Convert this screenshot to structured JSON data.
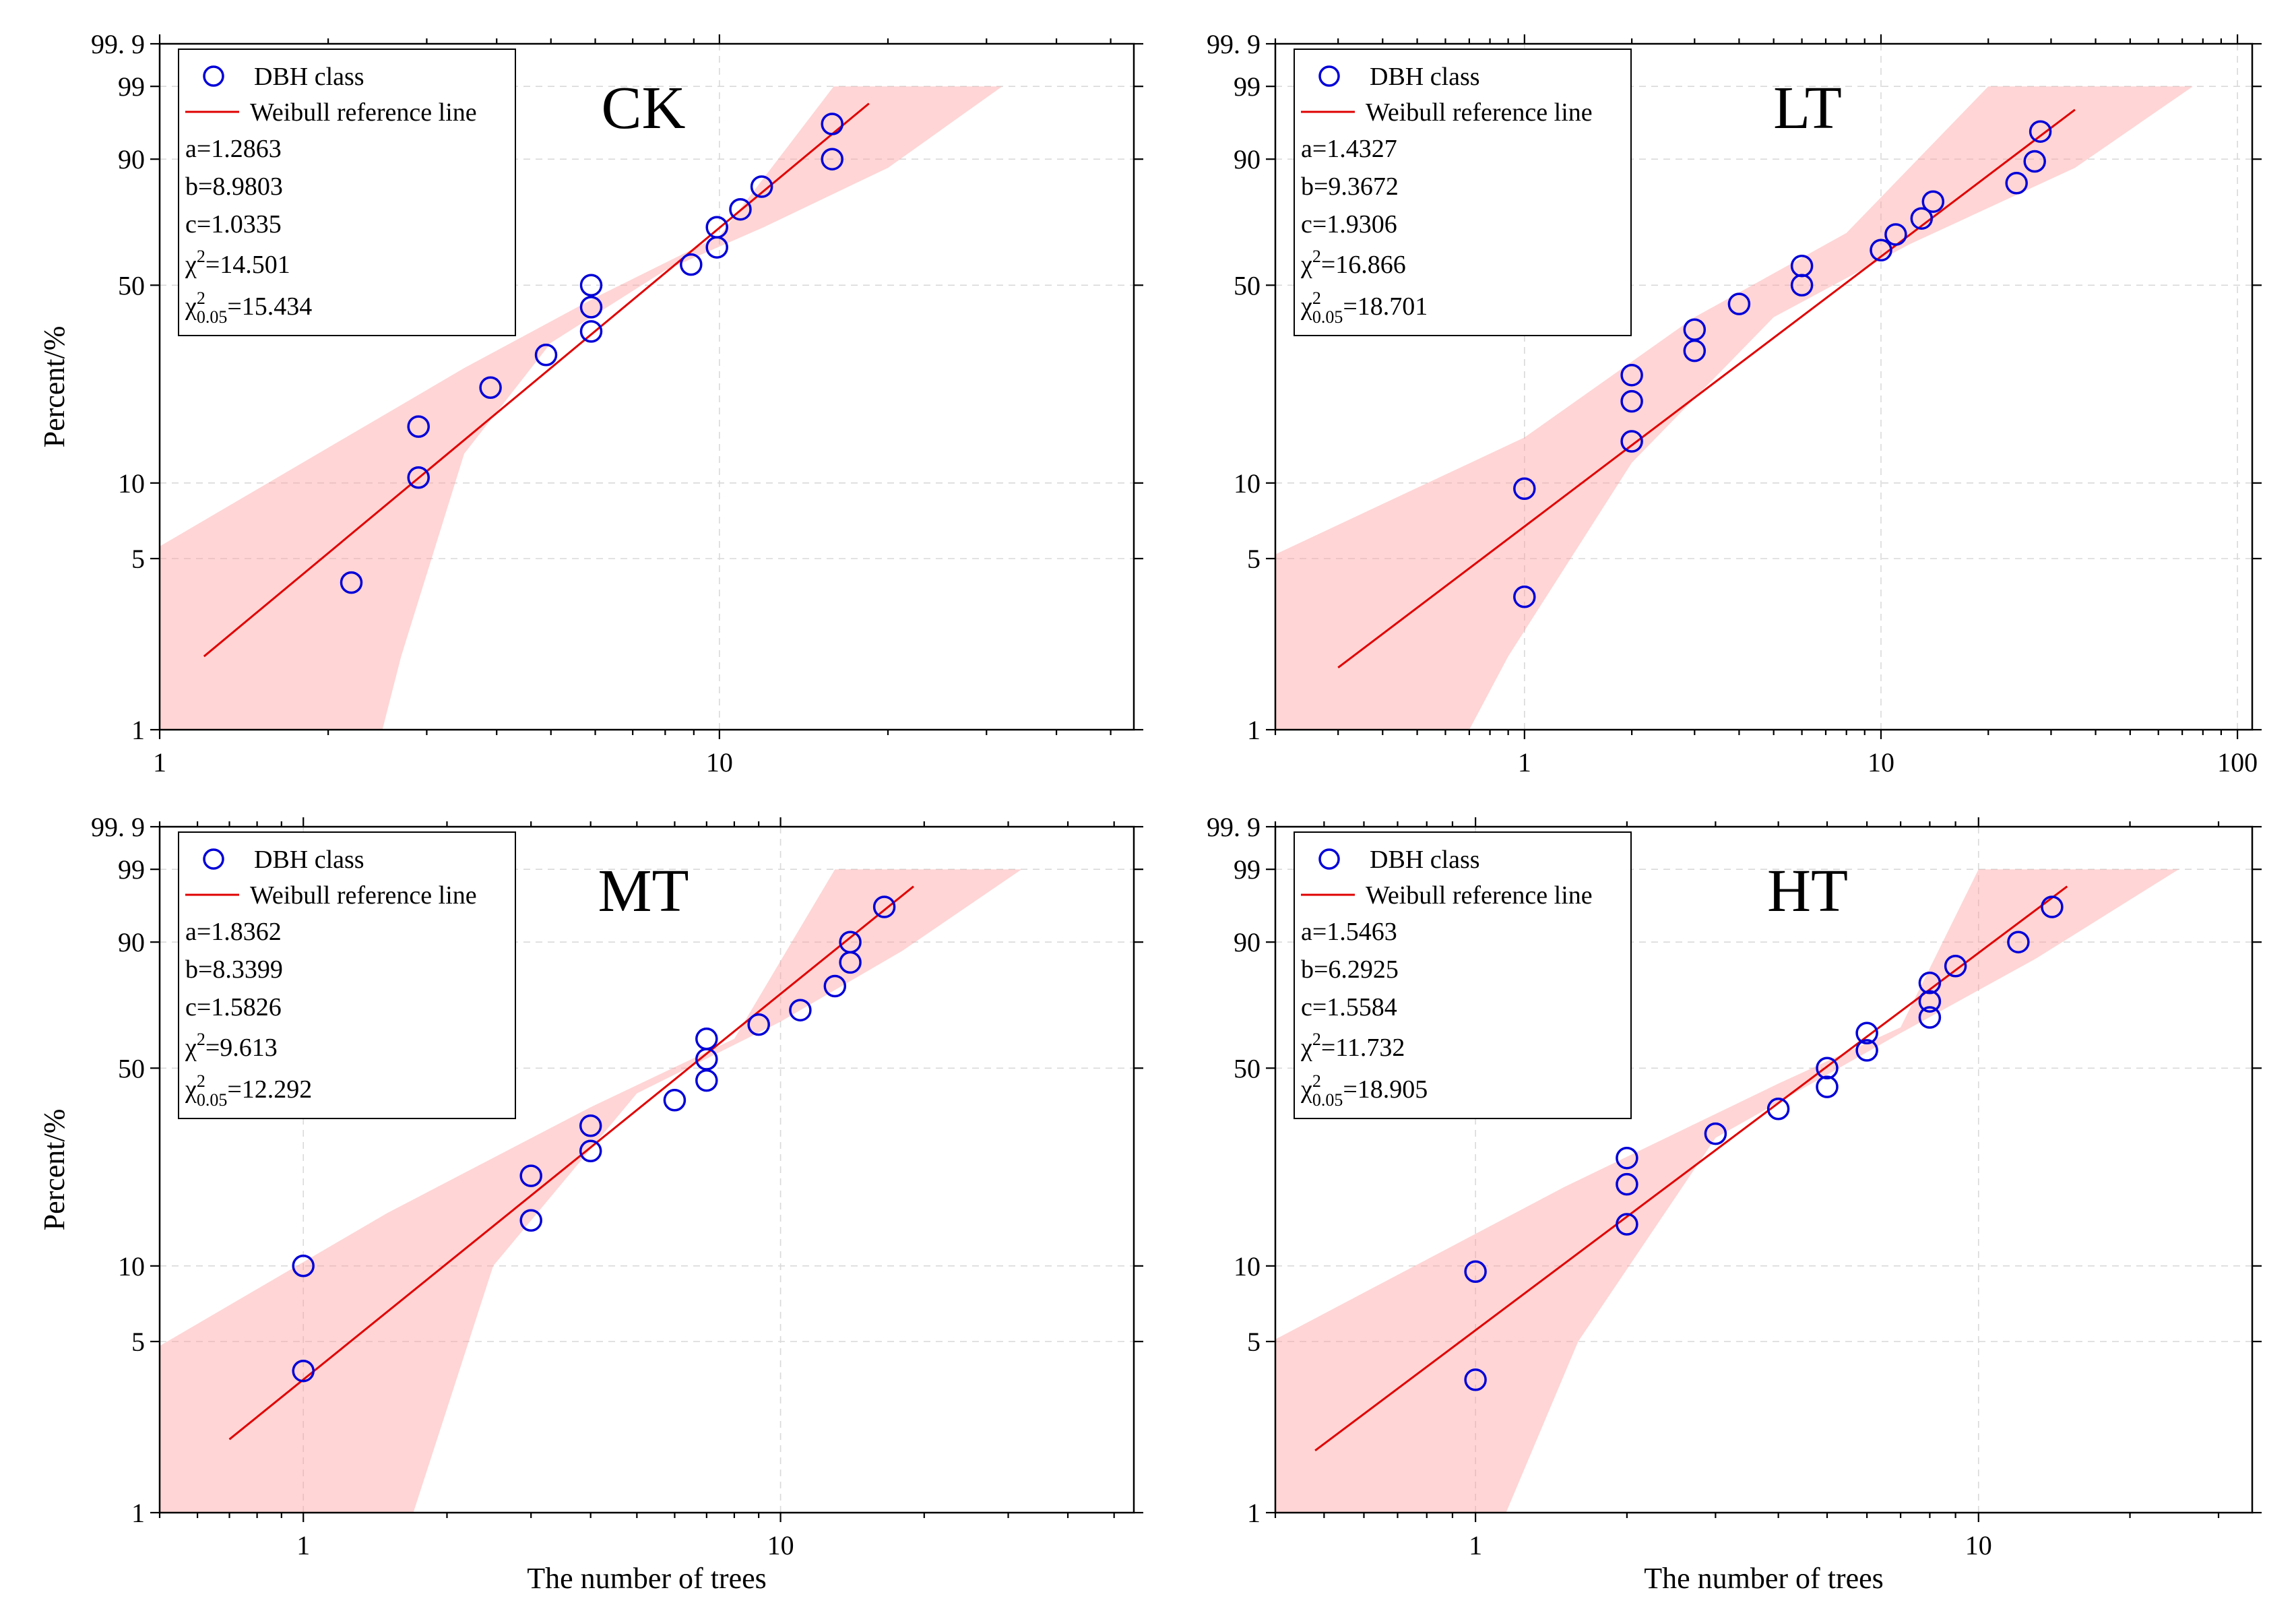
{
  "chart_data": [
    {
      "type": "scatter",
      "title": "CK",
      "xlabel": "",
      "ylabel": "Percent/%",
      "x_scale": "log",
      "y_scale": "weibull-probability",
      "xlim": [
        1,
        55
      ],
      "xticks": [
        {
          "value": 1,
          "label": "1"
        },
        {
          "value": 10,
          "label": "10"
        }
      ],
      "ylim": [
        1,
        99.9
      ],
      "yticks": [
        {
          "value": 1,
          "label": "1"
        },
        {
          "value": 5,
          "label": "5"
        },
        {
          "value": 10,
          "label": "10"
        },
        {
          "value": 50,
          "label": "50"
        },
        {
          "value": 90,
          "label": "90"
        },
        {
          "value": 99,
          "label": "99"
        },
        {
          "value": 99.9,
          "label": "99. 9"
        }
      ],
      "grid": true,
      "legend": {
        "position": "top-left",
        "entries": [
          "DBH class",
          "Weibull reference line"
        ]
      },
      "params": [
        "a=1.2863",
        "b=8.9803",
        "c=1.0335",
        "χ2=14.501",
        "χ20.05=15.434"
      ],
      "series": [
        {
          "name": "DBH class",
          "kind": "points",
          "points": [
            [
              2.2,
              4
            ],
            [
              2.9,
              10.5
            ],
            [
              2.9,
              16.5
            ],
            [
              3.9,
              23
            ],
            [
              4.9,
              30
            ],
            [
              5.9,
              36
            ],
            [
              5.9,
              43
            ],
            [
              5.9,
              50
            ],
            [
              8.9,
              57
            ],
            [
              9.9,
              63
            ],
            [
              9.9,
              70
            ],
            [
              10.9,
              76
            ],
            [
              11.9,
              83
            ],
            [
              15.9,
              90
            ],
            [
              15.9,
              96
            ]
          ]
        },
        {
          "name": "Weibull reference line",
          "kind": "line",
          "points": [
            [
              1.2,
              2
            ],
            [
              18.5,
              98
            ]
          ]
        }
      ],
      "confidence_band": [
        [
          1,
          5.6
        ],
        [
          3.5,
          27
        ],
        [
          6,
          46
        ],
        [
          10,
          67
        ],
        [
          16,
          99
        ],
        [
          32,
          99
        ],
        [
          20,
          88
        ],
        [
          12,
          70
        ],
        [
          8,
          55
        ],
        [
          5,
          33
        ],
        [
          3.5,
          13
        ],
        [
          2.7,
          2
        ],
        [
          2.5,
          1
        ],
        [
          1,
          1
        ]
      ]
    },
    {
      "type": "scatter",
      "title": "LT",
      "xlabel": "",
      "ylabel": "",
      "x_scale": "log",
      "y_scale": "weibull-probability",
      "xlim": [
        0.2,
        110
      ],
      "xticks": [
        {
          "value": 1,
          "label": "1"
        },
        {
          "value": 10,
          "label": "10"
        },
        {
          "value": 100,
          "label": "100"
        }
      ],
      "ylim": [
        1,
        99.9
      ],
      "yticks": [
        {
          "value": 1,
          "label": "1"
        },
        {
          "value": 5,
          "label": "5"
        },
        {
          "value": 10,
          "label": "10"
        },
        {
          "value": 50,
          "label": "50"
        },
        {
          "value": 90,
          "label": "90"
        },
        {
          "value": 99,
          "label": "99"
        },
        {
          "value": 99.9,
          "label": "99. 9"
        }
      ],
      "grid": true,
      "legend": {
        "position": "top-left",
        "entries": [
          "DBH class",
          "Weibull reference line"
        ]
      },
      "params": [
        "a=1.4327",
        "b=9.3672",
        "c=1.9306",
        "χ2=16.866",
        "χ20.05=18.701"
      ],
      "series": [
        {
          "name": "DBH class",
          "kind": "points",
          "points": [
            [
              1,
              3.5
            ],
            [
              1,
              9.5
            ],
            [
              2,
              14.5
            ],
            [
              2,
              20.5
            ],
            [
              2,
              25.5
            ],
            [
              3,
              31
            ],
            [
              3,
              36.5
            ],
            [
              4,
              44
            ],
            [
              6,
              50
            ],
            [
              6,
              56.5
            ],
            [
              10,
              62
            ],
            [
              11,
              67.5
            ],
            [
              13,
              73
            ],
            [
              14,
              78.5
            ],
            [
              24,
              84
            ],
            [
              27,
              89.5
            ],
            [
              28,
              95
            ]
          ]
        },
        {
          "name": "Weibull reference line",
          "kind": "line",
          "points": [
            [
              0.3,
              1.8
            ],
            [
              35,
              97.5
            ]
          ]
        }
      ],
      "confidence_band": [
        [
          0.2,
          5.2
        ],
        [
          1,
          15
        ],
        [
          3,
          40
        ],
        [
          8,
          68
        ],
        [
          20,
          99
        ],
        [
          75,
          99
        ],
        [
          35,
          88
        ],
        [
          12,
          64
        ],
        [
          5,
          40
        ],
        [
          2,
          12
        ],
        [
          0.9,
          2
        ],
        [
          0.7,
          1
        ],
        [
          0.2,
          1
        ]
      ]
    },
    {
      "type": "scatter",
      "title": "MT",
      "xlabel": "The number of trees",
      "ylabel": "Percent/%",
      "x_scale": "log",
      "y_scale": "weibull-probability",
      "xlim": [
        0.5,
        55
      ],
      "xticks": [
        {
          "value": 1,
          "label": "1"
        },
        {
          "value": 10,
          "label": "10"
        }
      ],
      "ylim": [
        1,
        99.9
      ],
      "yticks": [
        {
          "value": 1,
          "label": "1"
        },
        {
          "value": 5,
          "label": "5"
        },
        {
          "value": 10,
          "label": "10"
        },
        {
          "value": 50,
          "label": "50"
        },
        {
          "value": 90,
          "label": "90"
        },
        {
          "value": 99,
          "label": "99"
        },
        {
          "value": 99.9,
          "label": "99. 9"
        }
      ],
      "grid": true,
      "legend": {
        "position": "top-left",
        "entries": [
          "DBH class",
          "Weibull reference line"
        ]
      },
      "params": [
        "a=1.8362",
        "b=8.3399",
        "c=1.5826",
        "χ2=9.613",
        "χ20.05=12.292"
      ],
      "series": [
        {
          "name": "DBH class",
          "kind": "points",
          "points": [
            [
              1,
              3.8
            ],
            [
              1,
              10
            ],
            [
              3,
              15
            ],
            [
              3,
              22
            ],
            [
              4,
              27
            ],
            [
              4,
              33
            ],
            [
              6,
              40
            ],
            [
              7,
              46
            ],
            [
              7,
              53
            ],
            [
              7,
              60
            ],
            [
              9,
              65
            ],
            [
              11,
              70
            ],
            [
              13,
              78
            ],
            [
              14,
              85
            ],
            [
              14,
              90
            ],
            [
              16.5,
              96
            ]
          ]
        },
        {
          "name": "Weibull reference line",
          "kind": "line",
          "points": [
            [
              0.7,
              2
            ],
            [
              19,
              98
            ]
          ]
        }
      ],
      "confidence_band": [
        [
          0.5,
          4.8
        ],
        [
          1.5,
          16
        ],
        [
          4,
          38
        ],
        [
          8,
          60
        ],
        [
          13,
          99
        ],
        [
          32,
          99
        ],
        [
          18,
          88
        ],
        [
          10,
          66
        ],
        [
          5,
          42
        ],
        [
          2.5,
          10
        ],
        [
          1.7,
          1
        ],
        [
          0.5,
          1
        ]
      ]
    },
    {
      "type": "scatter",
      "title": "HT",
      "xlabel": "The number of trees",
      "ylabel": "",
      "x_scale": "log",
      "y_scale": "weibull-probability",
      "xlim": [
        0.4,
        35
      ],
      "xticks": [
        {
          "value": 1,
          "label": "1"
        },
        {
          "value": 10,
          "label": "10"
        }
      ],
      "ylim": [
        1,
        99.9
      ],
      "yticks": [
        {
          "value": 1,
          "label": "1"
        },
        {
          "value": 5,
          "label": "5"
        },
        {
          "value": 10,
          "label": "10"
        },
        {
          "value": 50,
          "label": "50"
        },
        {
          "value": 90,
          "label": "90"
        },
        {
          "value": 99,
          "label": "99"
        },
        {
          "value": 99.9,
          "label": "99. 9"
        }
      ],
      "grid": true,
      "legend": {
        "position": "top-left",
        "entries": [
          "DBH class",
          "Weibull reference line"
        ]
      },
      "params": [
        "a=1.5463",
        "b=6.2925",
        "c=1.5584",
        "χ2=11.732",
        "χ20.05=18.905"
      ],
      "series": [
        {
          "name": "DBH class",
          "kind": "points",
          "points": [
            [
              1,
              3.5
            ],
            [
              1,
              9.5
            ],
            [
              2,
              14.5
            ],
            [
              2,
              20.5
            ],
            [
              2,
              25.5
            ],
            [
              3,
              31
            ],
            [
              4,
              37.5
            ],
            [
              5,
              44
            ],
            [
              5,
              50
            ],
            [
              6,
              56
            ],
            [
              6,
              62
            ],
            [
              8,
              67.5
            ],
            [
              8,
              73
            ],
            [
              8,
              79
            ],
            [
              9,
              84
            ],
            [
              12,
              90
            ],
            [
              14,
              96
            ]
          ]
        },
        {
          "name": "Weibull reference line",
          "kind": "line",
          "points": [
            [
              0.48,
              1.8
            ],
            [
              15,
              98
            ]
          ]
        }
      ],
      "confidence_band": [
        [
          0.4,
          5.1
        ],
        [
          1.5,
          20
        ],
        [
          4,
          45
        ],
        [
          7,
          64
        ],
        [
          10,
          99
        ],
        [
          25,
          99
        ],
        [
          13,
          86
        ],
        [
          7,
          62
        ],
        [
          3,
          30
        ],
        [
          1.6,
          5
        ],
        [
          1.15,
          1
        ],
        [
          0.4,
          1
        ]
      ]
    }
  ]
}
